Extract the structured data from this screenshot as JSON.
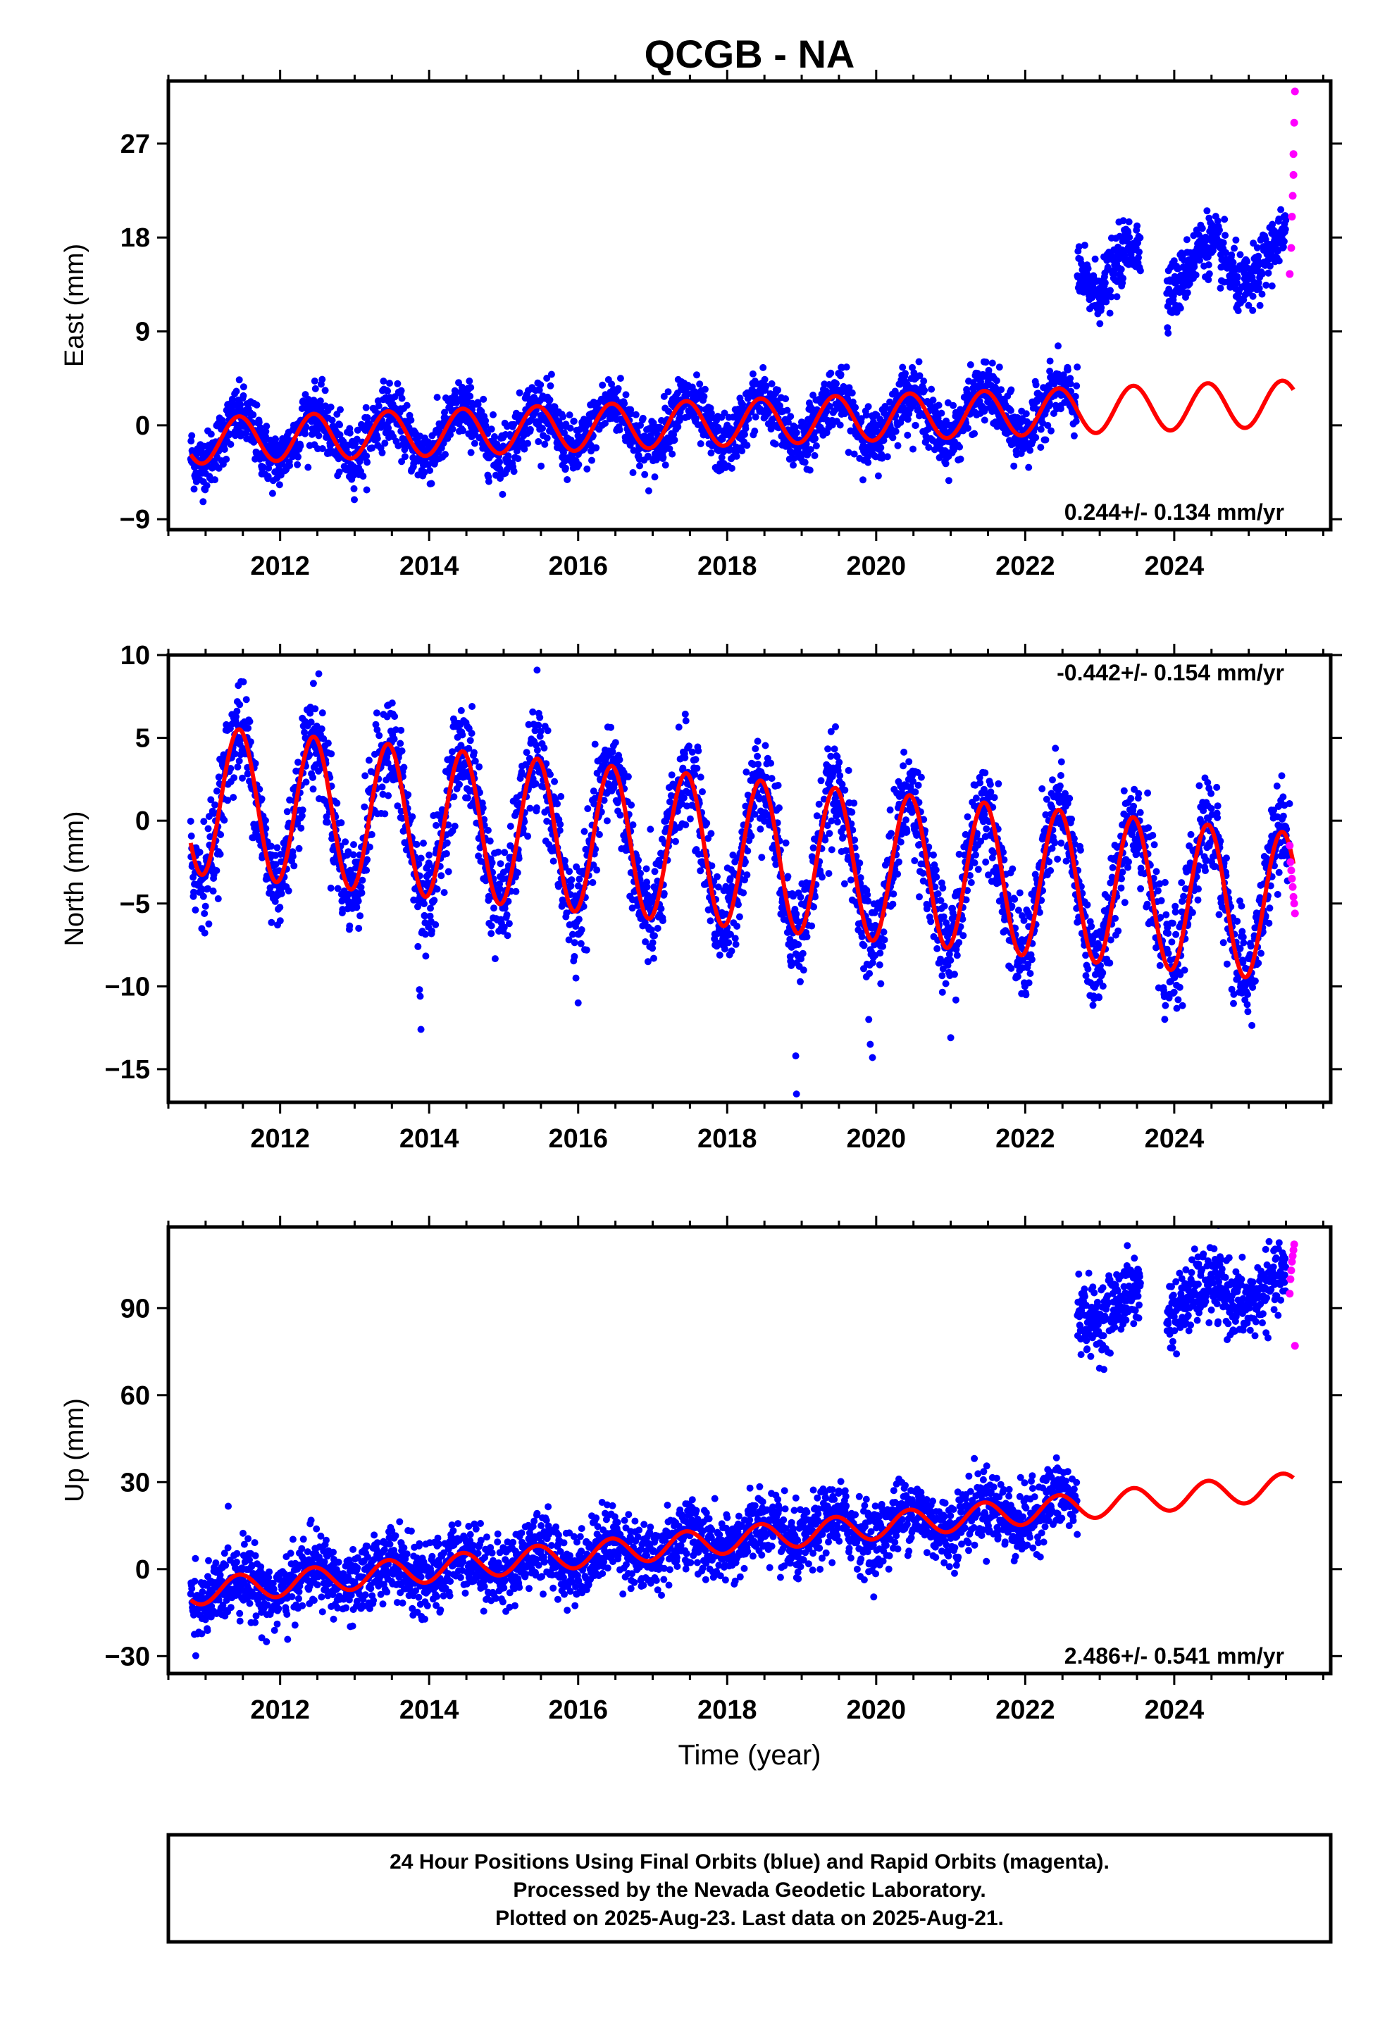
{
  "title": "QCGB - NA",
  "xlabel": "Time (year)",
  "footer": {
    "line1": "24 Hour Positions Using Final Orbits (blue) and Rapid Orbits (magenta).",
    "line2": "Processed by the Nevada Geodetic Laboratory.",
    "line3": "Plotted on 2025-Aug-23. Last data on 2025-Aug-21."
  },
  "colors": {
    "final": "#0000ff",
    "rapid": "#ff00ff",
    "model": "#ff0000",
    "frame": "#000000"
  },
  "chart_data": [
    {
      "type": "scatter",
      "ylabel": "East (mm)",
      "rate_label": "0.244+/- 0.134 mm/yr",
      "rate_position": "bottom-right",
      "xlim": [
        2010.5,
        2026.1
      ],
      "ylim": [
        -10,
        33
      ],
      "xticks": [
        2012,
        2014,
        2016,
        2018,
        2020,
        2022,
        2024
      ],
      "xtick_labels": [
        "2012",
        "2014",
        "2016",
        "2018",
        "2020",
        "2022",
        "2024"
      ],
      "yticks": [
        -9,
        0,
        9,
        18,
        27
      ],
      "ytick_labels": [
        "−9",
        "0",
        "9",
        "18",
        "27"
      ],
      "data_segments": [
        {
          "start": 2010.8,
          "end": 2022.7,
          "offset": 0
        },
        {
          "start": 2022.7,
          "end": 2023.55,
          "offset": 13.5
        },
        {
          "start": 2023.9,
          "end": 2025.5,
          "offset": 13.5
        }
      ],
      "model": {
        "a0": -1.5,
        "rate": 0.244,
        "amp": 2.2,
        "phase": 2011.45,
        "jump_epoch": 2022.7,
        "jump": 0,
        "x_range": [
          2010.8,
          2025.6
        ]
      },
      "scatter_noise": 1.4,
      "rapid_points": [
        {
          "x": 2025.55,
          "y": 14.5
        },
        {
          "x": 2025.57,
          "y": 17
        },
        {
          "x": 2025.58,
          "y": 20
        },
        {
          "x": 2025.59,
          "y": 22
        },
        {
          "x": 2025.6,
          "y": 24
        },
        {
          "x": 2025.6,
          "y": 26
        },
        {
          "x": 2025.61,
          "y": 29
        },
        {
          "x": 2025.62,
          "y": 32
        }
      ]
    },
    {
      "type": "scatter",
      "ylabel": "North (mm)",
      "rate_label": "-0.442+/- 0.154 mm/yr",
      "rate_position": "top-right",
      "xlim": [
        2010.5,
        2026.1
      ],
      "ylim": [
        -17,
        10
      ],
      "xticks": [
        2012,
        2014,
        2016,
        2018,
        2020,
        2022,
        2024
      ],
      "xtick_labels": [
        "2012",
        "2014",
        "2016",
        "2018",
        "2020",
        "2022",
        "2024"
      ],
      "yticks": [
        -15,
        -10,
        -5,
        0,
        5,
        10
      ],
      "ytick_labels": [
        "−15",
        "−10",
        "−5",
        "0",
        "5",
        "10"
      ],
      "data_segments": [
        {
          "start": 2010.8,
          "end": 2025.55,
          "offset": 0
        }
      ],
      "model": {
        "a0": 1.3,
        "rate": -0.442,
        "amp": 4.5,
        "phase": 2011.45,
        "jump_epoch": 2030,
        "jump": 0,
        "x_range": [
          2010.8,
          2025.6
        ]
      },
      "scatter_noise": 1.5,
      "outliers": [
        {
          "x": 2013.85,
          "y": -7.6
        },
        {
          "x": 2013.87,
          "y": -10.2
        },
        {
          "x": 2013.88,
          "y": -10.6
        },
        {
          "x": 2013.89,
          "y": -12.6
        },
        {
          "x": 2015.95,
          "y": -8.2
        },
        {
          "x": 2015.97,
          "y": -9.5
        },
        {
          "x": 2016.0,
          "y": -11.0
        },
        {
          "x": 2018.92,
          "y": -14.2
        },
        {
          "x": 2018.93,
          "y": -16.5
        },
        {
          "x": 2019.9,
          "y": -12.0
        },
        {
          "x": 2019.92,
          "y": -13.5
        },
        {
          "x": 2019.95,
          "y": -14.3
        },
        {
          "x": 2021.0,
          "y": -13.1
        }
      ],
      "rapid_points": [
        {
          "x": 2025.55,
          "y": -1.5
        },
        {
          "x": 2025.56,
          "y": -2.5
        },
        {
          "x": 2025.57,
          "y": -3.0
        },
        {
          "x": 2025.58,
          "y": -3.5
        },
        {
          "x": 2025.59,
          "y": -4.0
        },
        {
          "x": 2025.6,
          "y": -4.6
        },
        {
          "x": 2025.61,
          "y": -5.0
        },
        {
          "x": 2025.62,
          "y": -5.6
        }
      ]
    },
    {
      "type": "scatter",
      "ylabel": "Up (mm)",
      "rate_label": "2.486+/- 0.541 mm/yr",
      "rate_position": "bottom-right",
      "xlim": [
        2010.5,
        2026.1
      ],
      "ylim": [
        -36,
        118
      ],
      "xticks": [
        2012,
        2014,
        2016,
        2018,
        2020,
        2022,
        2024
      ],
      "xtick_labels": [
        "2012",
        "2014",
        "2016",
        "2018",
        "2020",
        "2022",
        "2024"
      ],
      "yticks": [
        -30,
        0,
        30,
        60,
        90
      ],
      "ytick_labels": [
        "−30",
        "0",
        "30",
        "60",
        "90"
      ],
      "data_segments": [
        {
          "start": 2010.8,
          "end": 2022.7,
          "offset": 0
        },
        {
          "start": 2022.7,
          "end": 2023.55,
          "offset": 68
        },
        {
          "start": 2023.9,
          "end": 2025.5,
          "offset": 68
        }
      ],
      "model": {
        "a0": -8,
        "rate": 2.486,
        "amp": 4.5,
        "phase": 2011.45,
        "jump_epoch": 2030,
        "jump": 0,
        "x_range": [
          2010.8,
          2025.6
        ]
      },
      "scatter_noise": 6,
      "rapid_points": [
        {
          "x": 2025.55,
          "y": 95
        },
        {
          "x": 2025.56,
          "y": 100
        },
        {
          "x": 2025.57,
          "y": 103
        },
        {
          "x": 2025.58,
          "y": 106
        },
        {
          "x": 2025.59,
          "y": 108
        },
        {
          "x": 2025.6,
          "y": 110
        },
        {
          "x": 2025.61,
          "y": 112
        },
        {
          "x": 2025.62,
          "y": 77
        }
      ]
    }
  ]
}
